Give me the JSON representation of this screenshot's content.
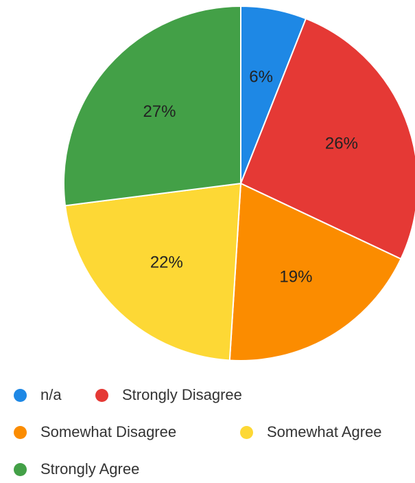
{
  "chart_data": {
    "type": "pie",
    "labels": [
      "n/a",
      "Strongly Disagree",
      "Somewhat Disagree",
      "Somewhat Agree",
      "Strongly Agree"
    ],
    "values": [
      6,
      26,
      19,
      22,
      27
    ],
    "value_labels": [
      "6%",
      "26%",
      "19%",
      "22%",
      "27%"
    ],
    "colors": [
      "#1e88e5",
      "#e53935",
      "#fb8c00",
      "#fdd835",
      "#43a047"
    ],
    "start": "12 o'clock",
    "direction": "clockwise",
    "legend_position": "bottom"
  }
}
